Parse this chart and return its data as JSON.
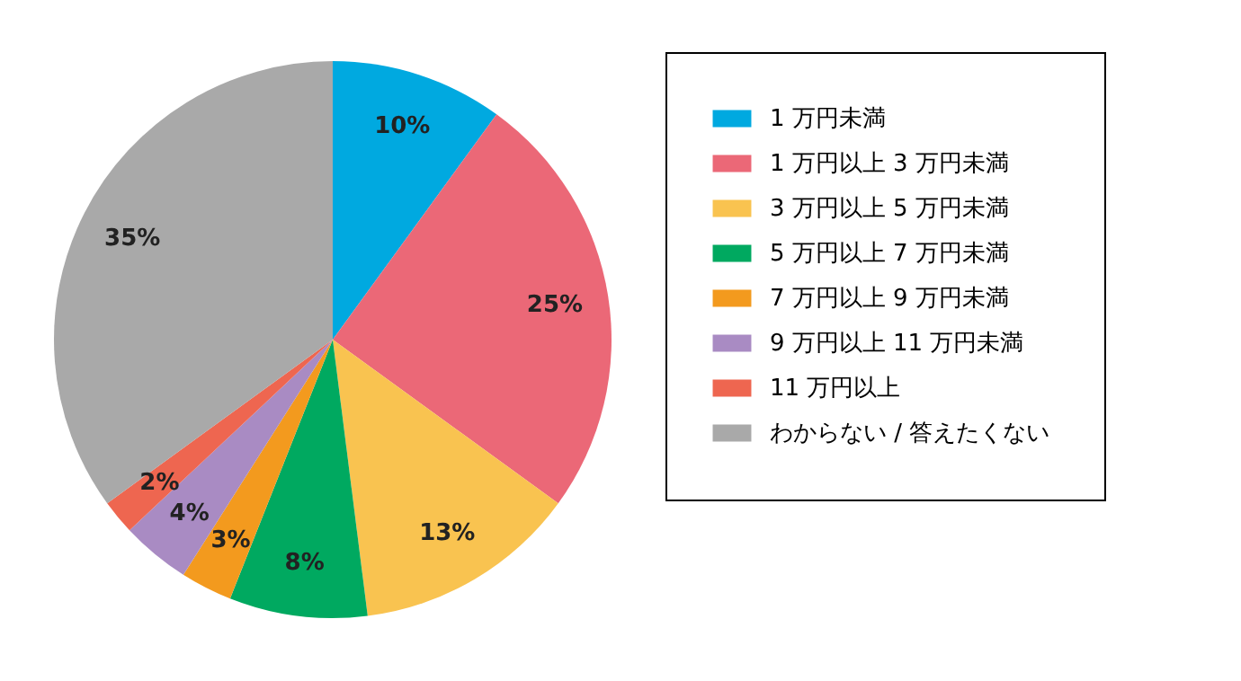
{
  "chart_data": {
    "type": "pie",
    "categories": [
      "1 万円未満",
      "1 万円以上 3 万円未満",
      "3 万円以上 5 万円未満",
      "5 万円以上 7 万円未満",
      "7 万円以上 9 万円未満",
      "9 万円以上 11 万円未満",
      "11 万円以上",
      "わからない / 答えたくない"
    ],
    "values": [
      10,
      25,
      13,
      8,
      3,
      4,
      2,
      35
    ],
    "colors": [
      "#00a9e0",
      "#eb6877",
      "#f9c350",
      "#00a960",
      "#f39a1e",
      "#a98bc3",
      "#ee6650",
      "#a9a9a9"
    ],
    "value_labels": [
      "10%",
      "25%",
      "13%",
      "8%",
      "3%",
      "4%",
      "2%",
      "35%"
    ],
    "legend": "right"
  }
}
